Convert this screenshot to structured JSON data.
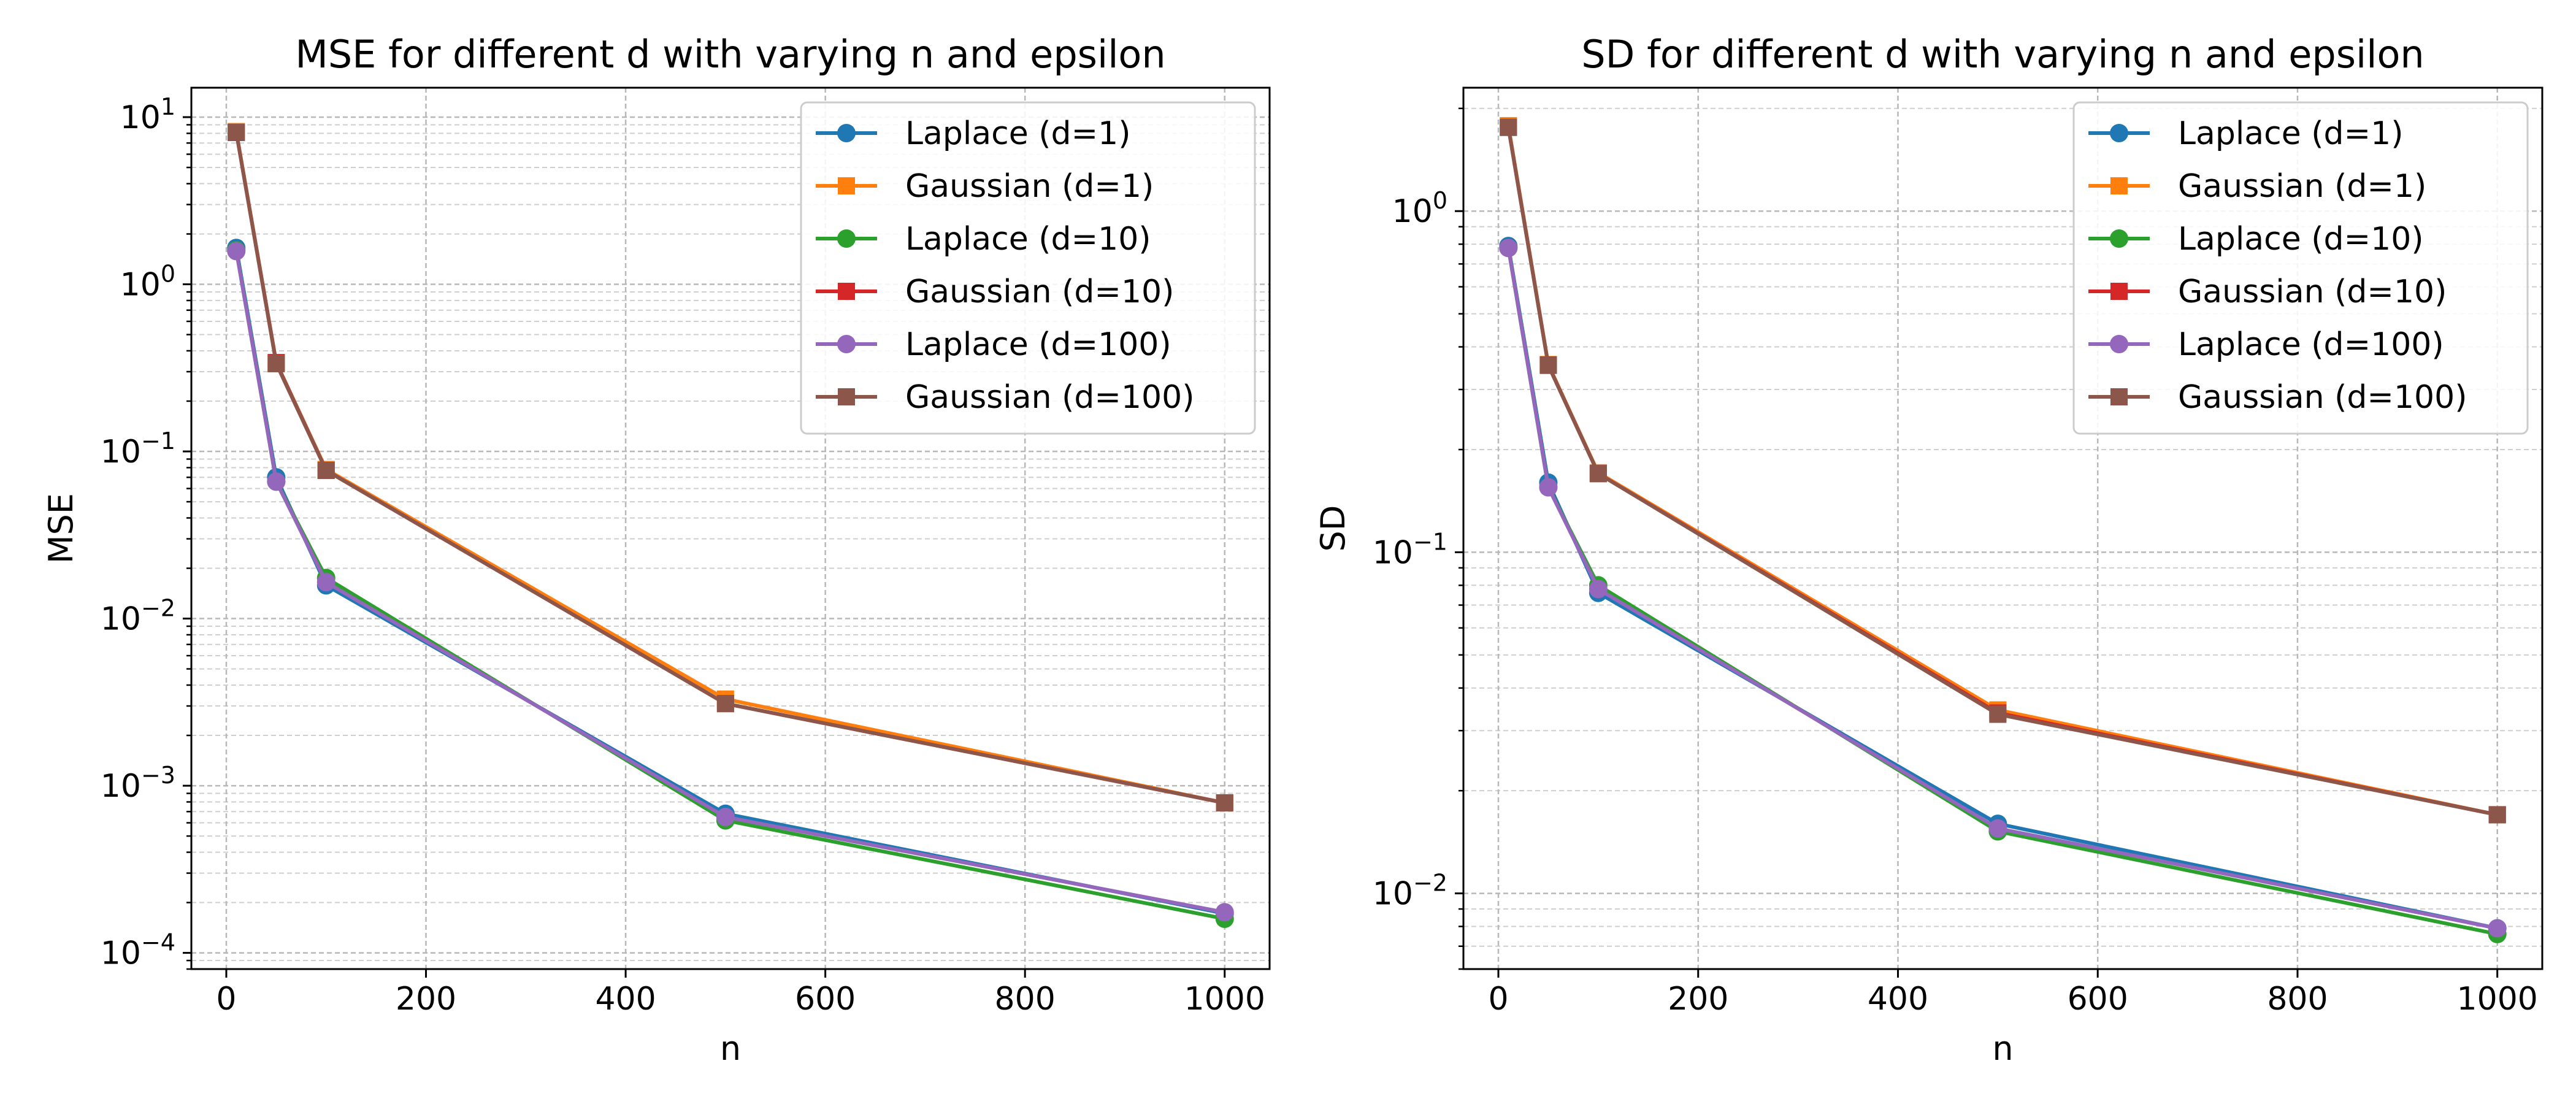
{
  "chart_data": [
    {
      "type": "line",
      "title": "MSE for different d with varying n and epsilon",
      "xlabel": "n",
      "ylabel": "MSE",
      "xlim": [
        -35,
        1045
      ],
      "ylim": [
        8e-05,
        15
      ],
      "yscale": "log",
      "grid": true,
      "legend_position": "top-right",
      "x_ticks": [
        0,
        200,
        400,
        600,
        800,
        1000
      ],
      "x_tick_labels": [
        "0",
        "200",
        "400",
        "600",
        "800",
        "1000"
      ],
      "y_ticks": [
        0.0001,
        0.001,
        0.01,
        0.1,
        1,
        10
      ],
      "y_tick_labels": [
        {
          "base": "10",
          "exp": "−4"
        },
        {
          "base": "10",
          "exp": "−3"
        },
        {
          "base": "10",
          "exp": "−2"
        },
        {
          "base": "10",
          "exp": "−1"
        },
        {
          "base": "10",
          "exp": "0"
        },
        {
          "base": "10",
          "exp": "1"
        }
      ],
      "x": [
        10,
        50,
        100,
        500,
        1000
      ],
      "series": [
        {
          "name": "Laplace (d=1)",
          "marker": "circle",
          "color": "#1f77b4",
          "values": [
            1.65,
            0.07,
            0.0158,
            0.00068,
            0.000172
          ]
        },
        {
          "name": "Gaussian (d=1)",
          "marker": "square",
          "color": "#ff7f0e",
          "values": [
            8.2,
            0.34,
            0.078,
            0.0033,
            0.00079
          ]
        },
        {
          "name": "Laplace (d=10)",
          "marker": "circle",
          "color": "#2ca02c",
          "values": [
            1.6,
            0.066,
            0.0175,
            0.00062,
            0.00016
          ]
        },
        {
          "name": "Gaussian (d=10)",
          "marker": "square",
          "color": "#d62728",
          "values": [
            8.1,
            0.34,
            0.077,
            0.0031,
            0.00079
          ]
        },
        {
          "name": "Laplace (d=100)",
          "marker": "circle",
          "color": "#9467bd",
          "values": [
            1.58,
            0.066,
            0.0165,
            0.00065,
            0.000175
          ]
        },
        {
          "name": "Gaussian (d=100)",
          "marker": "square",
          "color": "#8c564b",
          "values": [
            8.1,
            0.335,
            0.077,
            0.0031,
            0.00079
          ]
        }
      ]
    },
    {
      "type": "line",
      "title": "SD for different d with varying n and epsilon",
      "xlabel": "n",
      "ylabel": "SD",
      "xlim": [
        -35,
        1045
      ],
      "ylim": [
        0.006,
        2.3
      ],
      "yscale": "log",
      "grid": true,
      "legend_position": "top-right",
      "x_ticks": [
        0,
        200,
        400,
        600,
        800,
        1000
      ],
      "x_tick_labels": [
        "0",
        "200",
        "400",
        "600",
        "800",
        "1000"
      ],
      "y_ticks": [
        0.01,
        0.1,
        1
      ],
      "y_tick_labels": [
        {
          "base": "10",
          "exp": "−2"
        },
        {
          "base": "10",
          "exp": "−1"
        },
        {
          "base": "10",
          "exp": "0"
        }
      ],
      "x": [
        10,
        50,
        100,
        500,
        1000
      ],
      "series": [
        {
          "name": "Laplace (d=1)",
          "marker": "circle",
          "color": "#1f77b4",
          "values": [
            0.79,
            0.16,
            0.076,
            0.016,
            0.0079
          ]
        },
        {
          "name": "Gaussian (d=1)",
          "marker": "square",
          "color": "#ff7f0e",
          "values": [
            1.78,
            0.355,
            0.171,
            0.0345,
            0.017
          ]
        },
        {
          "name": "Laplace (d=10)",
          "marker": "circle",
          "color": "#2ca02c",
          "values": [
            0.78,
            0.155,
            0.08,
            0.0152,
            0.0076
          ]
        },
        {
          "name": "Gaussian (d=10)",
          "marker": "square",
          "color": "#d62728",
          "values": [
            1.76,
            0.354,
            0.17,
            0.0338,
            0.017
          ]
        },
        {
          "name": "Laplace (d=100)",
          "marker": "circle",
          "color": "#9467bd",
          "values": [
            0.78,
            0.155,
            0.078,
            0.0155,
            0.0079
          ]
        },
        {
          "name": "Gaussian (d=100)",
          "marker": "square",
          "color": "#8c564b",
          "values": [
            1.76,
            0.353,
            0.17,
            0.0335,
            0.017
          ]
        }
      ]
    }
  ]
}
